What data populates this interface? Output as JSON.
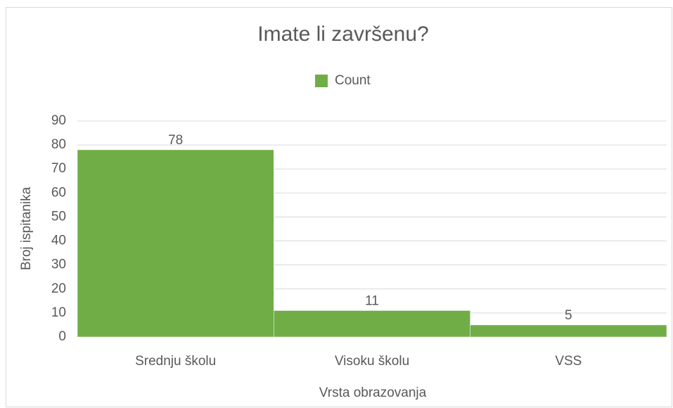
{
  "chart_data": {
    "type": "bar",
    "title": "Imate li završenu?",
    "categories": [
      "Srednju školu",
      "Visoku školu",
      "VSS"
    ],
    "series": [
      {
        "name": "Count",
        "color": "#70ad47",
        "values": [
          78,
          11,
          5
        ]
      }
    ],
    "x_label": "Vrsta obrazovanja",
    "y_label": "Broj ispitanika",
    "ylim": [
      0,
      90
    ],
    "yticks": [
      0,
      10,
      20,
      30,
      40,
      50,
      60,
      70,
      80,
      90
    ],
    "grid": true,
    "legend": "top"
  }
}
